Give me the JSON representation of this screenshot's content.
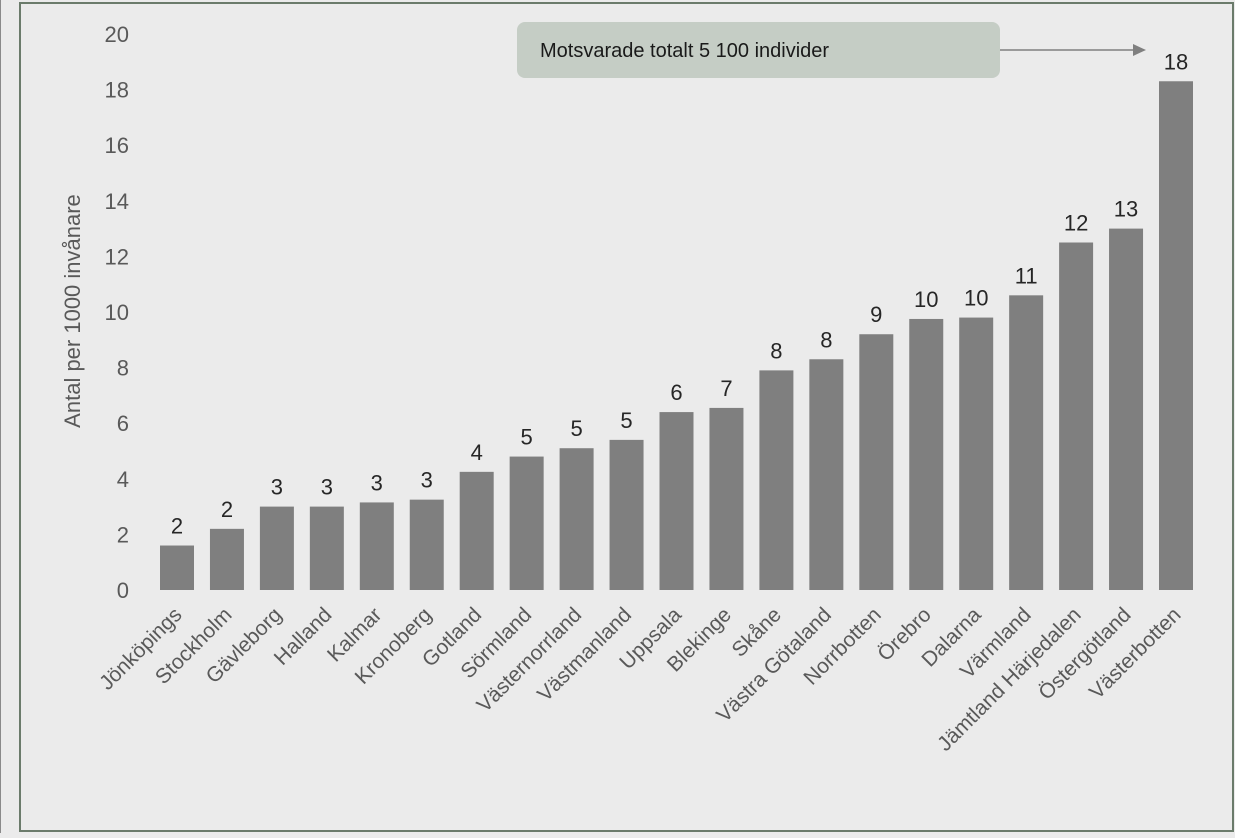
{
  "chart_data": {
    "type": "bar",
    "ylabel": "Antal per 1000 invånare",
    "xlabel": "",
    "ylim": [
      0,
      20
    ],
    "yticks": [
      "0",
      "2",
      "4",
      "6",
      "8",
      "10",
      "12",
      "14",
      "16",
      "18",
      "20"
    ],
    "grid": false,
    "categories": [
      "Jönköpings",
      "Stockholm",
      "Gävleborg",
      "Halland",
      "Kalmar",
      "Kronoberg",
      "Gotland",
      "Sörmland",
      "Västernorrland",
      "Västmanland",
      "Uppsala",
      "Blekinge",
      "Skåne",
      "Västra Götaland",
      "Norrbotten",
      "Örebro",
      "Dalarna",
      "Värmland",
      "Jämtland Härjedalen",
      "Östergötland",
      "Västerbotten"
    ],
    "values": [
      1.6,
      2.2,
      3.0,
      3.0,
      3.15,
      3.25,
      4.25,
      4.8,
      5.1,
      5.4,
      6.4,
      6.55,
      7.9,
      8.3,
      9.2,
      9.75,
      9.8,
      10.6,
      12.5,
      13.0,
      18.3
    ],
    "data_labels": [
      "2",
      "2",
      "3",
      "3",
      "3",
      "3",
      "4",
      "5",
      "5",
      "5",
      "6",
      "7",
      "8",
      "8",
      "9",
      "10",
      "10",
      "11",
      "12",
      "13",
      "18"
    ],
    "annotation": "Motsvarade totalt 5 100  individer",
    "colors": {
      "bar": "#7f7f7f",
      "background": "#ebebeb",
      "annotation_box": "#c5cdc5",
      "border": "#6b7b6b",
      "text": "#262626",
      "axis_text": "#595959"
    }
  }
}
